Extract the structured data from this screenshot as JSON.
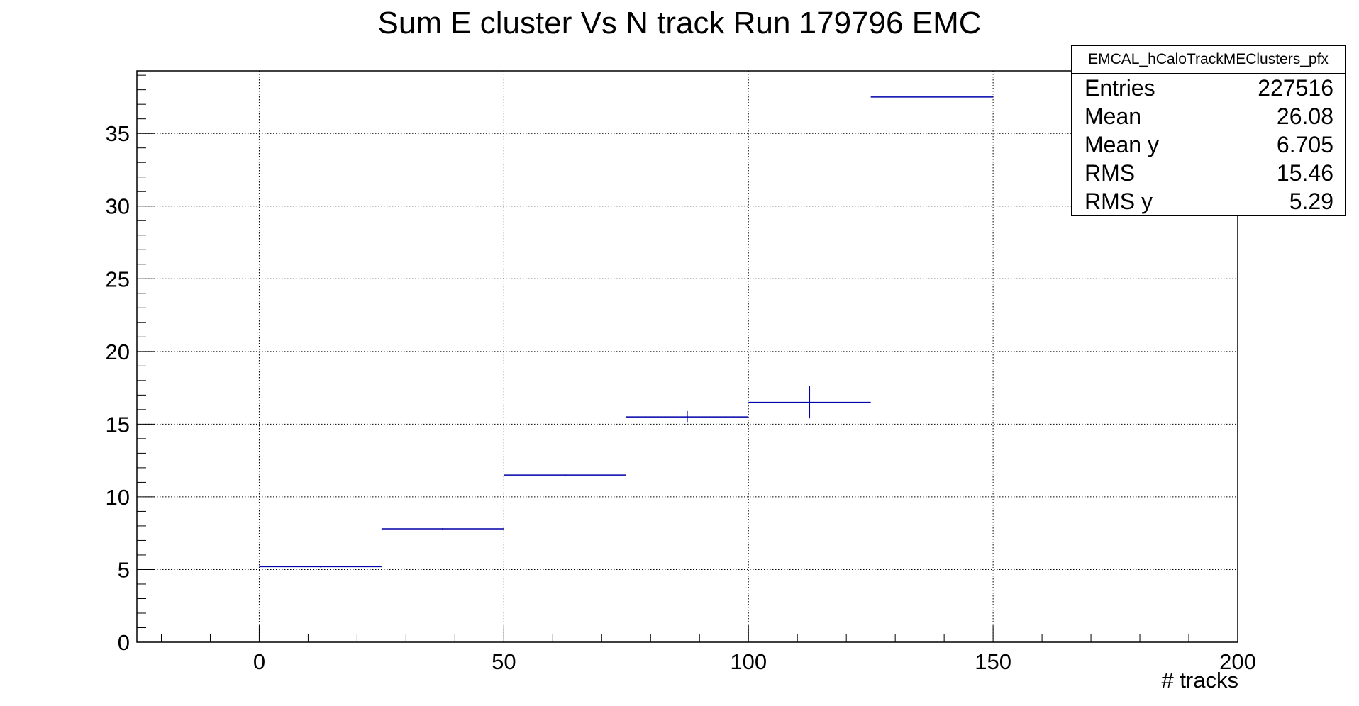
{
  "chart_data": {
    "type": "profile",
    "title": "Sum E cluster Vs N track Run 179796 EMC",
    "xlabel": "# tracks",
    "ylabel": "",
    "xlim": [
      -25,
      200
    ],
    "ylim": [
      0,
      39.3
    ],
    "xticks": [
      0,
      50,
      100,
      150,
      200
    ],
    "yticks": [
      0,
      5,
      10,
      15,
      20,
      25,
      30,
      35
    ],
    "grid": true,
    "line_color": "#0000aa",
    "bins": [
      {
        "xlow": 0,
        "xhigh": 25,
        "y": 5.2,
        "err": 0.05
      },
      {
        "xlow": 25,
        "xhigh": 50,
        "y": 7.8,
        "err": 0.05
      },
      {
        "xlow": 50,
        "xhigh": 75,
        "y": 11.5,
        "err": 0.1
      },
      {
        "xlow": 75,
        "xhigh": 100,
        "y": 15.5,
        "err": 0.4
      },
      {
        "xlow": 100,
        "xhigh": 125,
        "y": 16.5,
        "err": 1.1
      },
      {
        "xlow": 125,
        "xhigh": 150,
        "y": 37.5,
        "err": 0
      }
    ],
    "stats": {
      "name": "EMCAL_hCaloTrackMEClusters_pfx",
      "rows": [
        {
          "label": "Entries",
          "value": "227516"
        },
        {
          "label": "Mean",
          "value": "26.08"
        },
        {
          "label": "Mean y",
          "value": "6.705"
        },
        {
          "label": "RMS",
          "value": "15.46"
        },
        {
          "label": "RMS y",
          "value": "5.29"
        }
      ]
    }
  }
}
